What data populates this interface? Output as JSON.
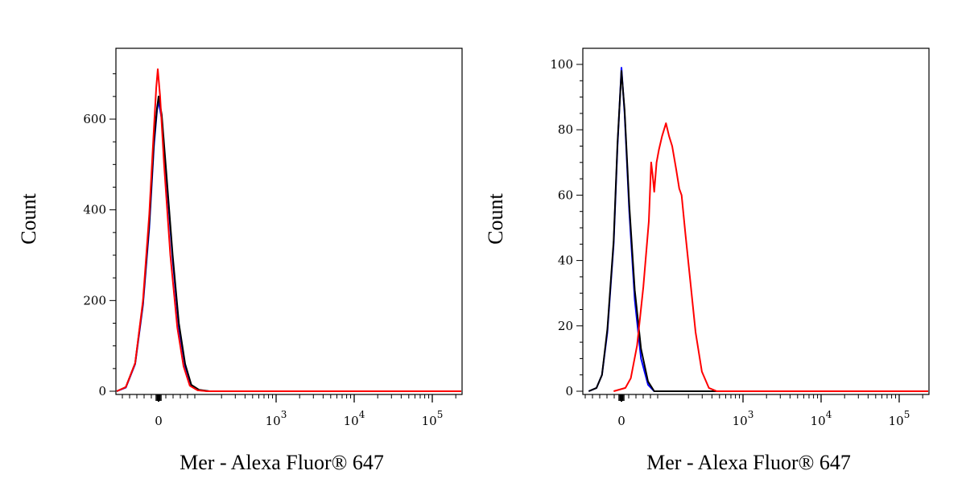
{
  "chart_data": [
    {
      "type": "line",
      "xlabel": "Mer - Alexa Fluor® 647",
      "ylabel": "Count",
      "ylim": [
        0,
        720
      ],
      "yticks": [
        0,
        200,
        400,
        600
      ],
      "xticks": [
        "0",
        "10",
        "10",
        "10"
      ],
      "xtick_exponents": [
        "",
        "3",
        "4",
        "5"
      ],
      "grid": false,
      "series": [
        {
          "color": "#0000ff",
          "points": [
            [
              -0.62,
              0
            ],
            [
              -0.42,
              8
            ],
            [
              -0.3,
              60
            ],
            [
              -0.2,
              190
            ],
            [
              -0.12,
              360
            ],
            [
              -0.06,
              540
            ],
            [
              -0.02,
              620
            ],
            [
              0.0,
              640
            ],
            [
              0.04,
              600
            ],
            [
              0.1,
              470
            ],
            [
              0.18,
              290
            ],
            [
              0.26,
              140
            ],
            [
              0.34,
              55
            ],
            [
              0.42,
              12
            ],
            [
              0.52,
              2
            ],
            [
              0.65,
              0
            ],
            [
              4.1,
              0
            ]
          ]
        },
        {
          "color": "#000000",
          "points": [
            [
              -0.62,
              0
            ],
            [
              -0.42,
              9
            ],
            [
              -0.3,
              62
            ],
            [
              -0.2,
              195
            ],
            [
              -0.12,
              370
            ],
            [
              -0.06,
              550
            ],
            [
              -0.02,
              625
            ],
            [
              0.0,
              650
            ],
            [
              0.04,
              610
            ],
            [
              0.1,
              480
            ],
            [
              0.18,
              300
            ],
            [
              0.26,
              150
            ],
            [
              0.34,
              60
            ],
            [
              0.42,
              14
            ],
            [
              0.52,
              3
            ],
            [
              0.65,
              0
            ],
            [
              4.1,
              0
            ]
          ]
        },
        {
          "color": "#ff0000",
          "points": [
            [
              -0.62,
              0
            ],
            [
              -0.42,
              9
            ],
            [
              -0.3,
              62
            ],
            [
              -0.2,
              200
            ],
            [
              -0.12,
              390
            ],
            [
              -0.06,
              580
            ],
            [
              -0.03,
              670
            ],
            [
              -0.01,
              710
            ],
            [
              0.02,
              650
            ],
            [
              0.07,
              500
            ],
            [
              0.15,
              300
            ],
            [
              0.24,
              140
            ],
            [
              0.32,
              55
            ],
            [
              0.4,
              12
            ],
            [
              0.5,
              2
            ],
            [
              0.62,
              0
            ],
            [
              4.1,
              0
            ]
          ]
        }
      ]
    },
    {
      "type": "line",
      "xlabel": "Mer - Alexa Fluor® 647",
      "ylabel": "Count",
      "ylim": [
        0,
        100
      ],
      "yticks": [
        0,
        20,
        40,
        60,
        80,
        100
      ],
      "xticks": [
        "0",
        "10",
        "10",
        "10"
      ],
      "xtick_exponents": [
        "",
        "3",
        "4",
        "5"
      ],
      "grid": false,
      "series": [
        {
          "color": "#0000ff",
          "points": [
            [
              -0.42,
              0
            ],
            [
              -0.32,
              1
            ],
            [
              -0.25,
              5
            ],
            [
              -0.18,
              18
            ],
            [
              -0.1,
              45
            ],
            [
              -0.05,
              75
            ],
            [
              0.0,
              99
            ],
            [
              0.04,
              85
            ],
            [
              0.1,
              55
            ],
            [
              0.17,
              28
            ],
            [
              0.25,
              10
            ],
            [
              0.34,
              2
            ],
            [
              0.42,
              0
            ],
            [
              4.1,
              0
            ]
          ]
        },
        {
          "color": "#000000",
          "points": [
            [
              -0.42,
              0
            ],
            [
              -0.32,
              1
            ],
            [
              -0.25,
              5
            ],
            [
              -0.18,
              19
            ],
            [
              -0.1,
              46
            ],
            [
              -0.05,
              76
            ],
            [
              0.0,
              98
            ],
            [
              0.04,
              86
            ],
            [
              0.1,
              57
            ],
            [
              0.17,
              31
            ],
            [
              0.25,
              13
            ],
            [
              0.34,
              3
            ],
            [
              0.42,
              0
            ],
            [
              4.1,
              0
            ]
          ]
        },
        {
          "color": "#ff0000",
          "points": [
            [
              -0.1,
              0
            ],
            [
              0.05,
              1
            ],
            [
              0.12,
              4
            ],
            [
              0.2,
              14
            ],
            [
              0.28,
              32
            ],
            [
              0.35,
              52
            ],
            [
              0.38,
              70
            ],
            [
              0.4,
              66
            ],
            [
              0.42,
              61
            ],
            [
              0.45,
              70
            ],
            [
              0.48,
              74
            ],
            [
              0.52,
              78
            ],
            [
              0.57,
              82
            ],
            [
              0.61,
              78
            ],
            [
              0.65,
              75
            ],
            [
              0.7,
              68
            ],
            [
              0.74,
              62
            ],
            [
              0.77,
              60
            ],
            [
              0.82,
              48
            ],
            [
              0.88,
              34
            ],
            [
              0.95,
              18
            ],
            [
              1.03,
              6
            ],
            [
              1.12,
              1
            ],
            [
              1.22,
              0
            ],
            [
              4.1,
              0
            ]
          ]
        }
      ]
    }
  ]
}
